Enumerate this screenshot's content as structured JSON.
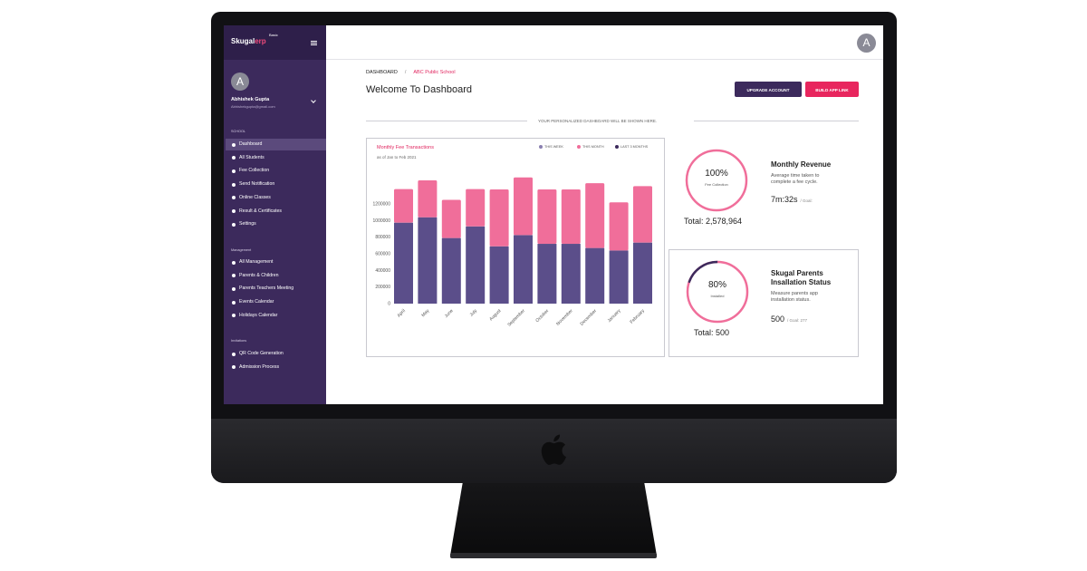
{
  "app": {
    "logo_main": "Skugal",
    "logo_accent": "erp",
    "logo_tag": "Basic"
  },
  "user": {
    "avatar_letter": "A",
    "name": "Abhishek Gupta",
    "email": "Abhishekgupta@gmail.com"
  },
  "sidebar": {
    "sections": [
      {
        "title": "SCHOOL",
        "items": [
          "Dashboard",
          "All Students",
          "Fee Collection",
          "Send Notification",
          "Online Classes",
          "Result & Certificates",
          "Settings"
        ]
      },
      {
        "title": "Management",
        "items": [
          "All Management",
          "Parents & Children",
          "Parents Teachers Meeting",
          "Events Calendar",
          "Holidays Calendar"
        ]
      },
      {
        "title": "Invitations",
        "items": [
          "QR Code Generation",
          "Admission Process"
        ]
      }
    ],
    "active_item": "Dashboard"
  },
  "breadcrumb": {
    "root": "DASHBOARD",
    "separator": "/",
    "current": "ABC Public School"
  },
  "page": {
    "title": "Welcome To Dashboard",
    "upgrade_button": "UPGRADE ACCOUNT",
    "build_button": "BUILD APP LINK",
    "divider_text": "YOUR PERSONALIZED DASHBOARD WILL BE SHOWN HERE."
  },
  "colors": {
    "primary": "#3c2a5c",
    "accent": "#e8265e",
    "bar_dark": "#5b4e8a",
    "bar_pink": "#f06e9a"
  },
  "chart_data": {
    "type": "bar",
    "title": "Monthly Fee Transactions",
    "subtitle": "as of Jan to Feb 2021",
    "legend": [
      "THIS WEEK",
      "THIS MONTH",
      "LAST 3 MONTHS"
    ],
    "legend_colors": [
      "#8a7fb0",
      "#f06e9a",
      "#3c2a5c"
    ],
    "categories": [
      "April",
      "May",
      "June",
      "July",
      "August",
      "September",
      "October",
      "November",
      "December",
      "January",
      "February"
    ],
    "series": [
      {
        "name": "LAST 3 MONTHS",
        "color": "#5b4e8a",
        "values": [
          975000,
          1040000,
          790000,
          930000,
          690000,
          825000,
          720000,
          720000,
          670000,
          640000,
          735000
        ]
      },
      {
        "name": "THIS MONTH",
        "color": "#f06e9a",
        "values": [
          405000,
          445000,
          460000,
          450000,
          685000,
          695000,
          655000,
          655000,
          780000,
          580000,
          680000
        ]
      }
    ],
    "stacked": true,
    "yticks": [
      0,
      200000,
      400000,
      600000,
      800000,
      1000000,
      1200000
    ],
    "ylim": [
      0,
      1550000
    ],
    "legend_position": "top-right"
  },
  "revenue": {
    "ring_percent": "100%",
    "ring_fraction": 1.0,
    "ring_label": "Fee Collection",
    "total": "Total: 2,578,964",
    "title": "Monthly Revenue",
    "desc_line1": "Average time taken to",
    "desc_line2": "complete a fee cycle.",
    "value": "7m:32s",
    "goal": "/  Goal:"
  },
  "parents": {
    "ring_percent": "80%",
    "ring_fraction": 0.8,
    "ring_label": "Installed",
    "total": "Total: 500",
    "title_line1": "Skugal Parents",
    "title_line2": "Insallation Status",
    "desc_line1": "Measure parents app",
    "desc_line2": "installation status.",
    "value": "500",
    "goal": "/  Goal: 277"
  }
}
